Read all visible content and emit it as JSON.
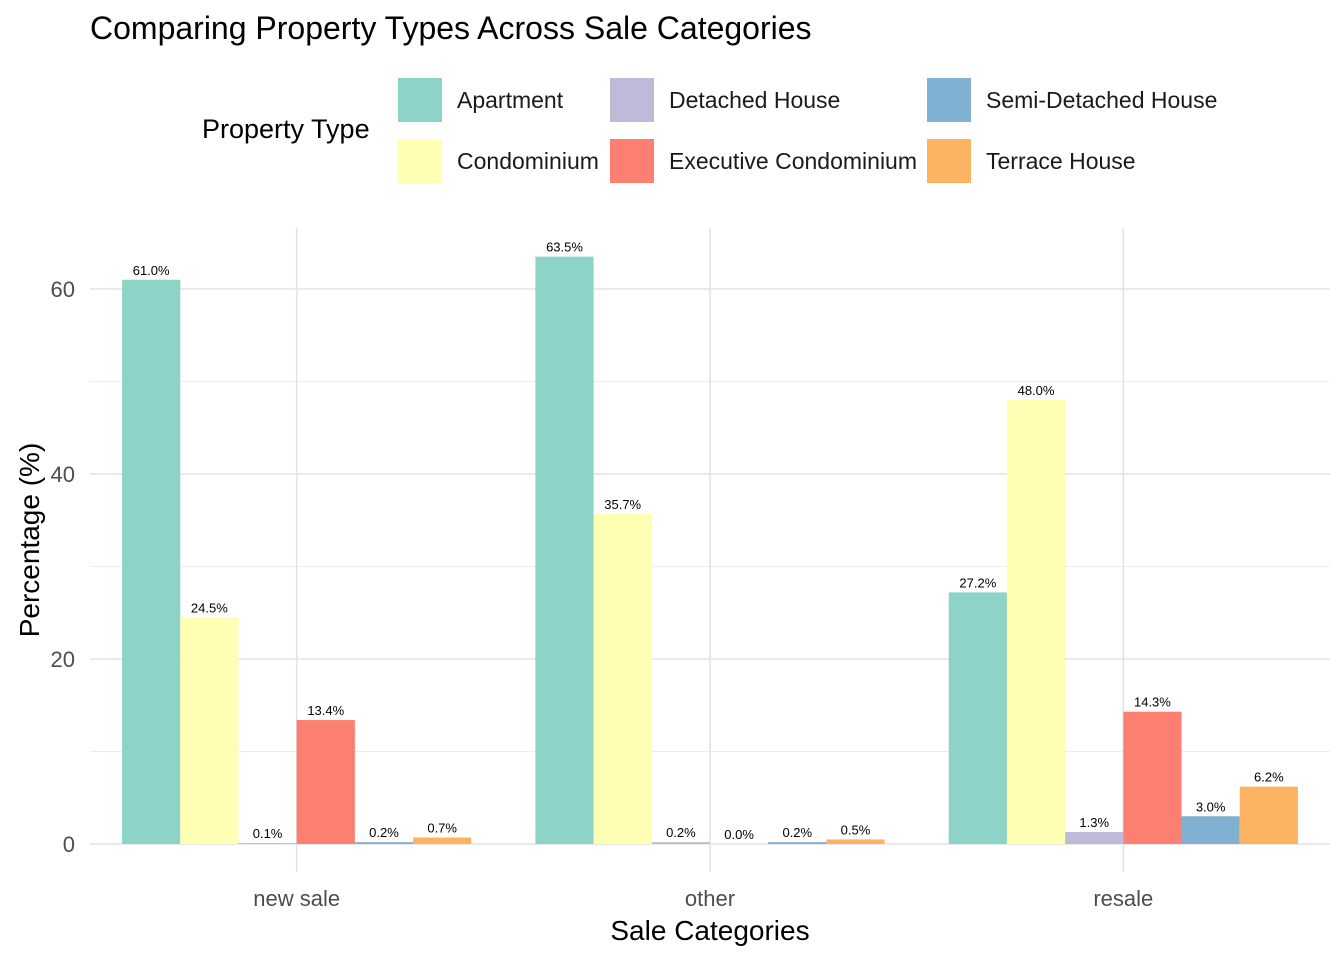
{
  "chart_data": {
    "type": "bar",
    "title": "Comparing Property Types Across Sale Categories",
    "xlabel": "Sale Categories",
    "ylabel": "Percentage (%)",
    "legend_title": "Property Type",
    "legend_position": "top",
    "grid": true,
    "ylim": [
      -3,
      66
    ],
    "yticks": [
      0,
      20,
      40,
      60
    ],
    "categories": [
      "new sale",
      "other",
      "resale"
    ],
    "series": [
      {
        "name": "Apartment",
        "color": "#8DD3C7",
        "values": [
          61.0,
          63.5,
          27.2
        ],
        "labels": [
          "61.0%",
          "63.5%",
          "27.2%"
        ]
      },
      {
        "name": "Condominium",
        "color": "#FFFFB3",
        "values": [
          24.5,
          35.7,
          48.0
        ],
        "labels": [
          "24.5%",
          "35.7%",
          "48.0%"
        ]
      },
      {
        "name": "Detached House",
        "color": "#BEBADA",
        "values": [
          0.1,
          0.2,
          1.3
        ],
        "labels": [
          "0.1%",
          "0.2%",
          "1.3%"
        ]
      },
      {
        "name": "Executive Condominium",
        "color": "#FB8072",
        "values": [
          13.4,
          0.0,
          14.3
        ],
        "labels": [
          "13.4%",
          "0.0%",
          "14.3%"
        ]
      },
      {
        "name": "Semi-Detached House",
        "color": "#80B1D3",
        "values": [
          0.2,
          0.2,
          3.0
        ],
        "labels": [
          "0.2%",
          "0.2%",
          "3.0%"
        ]
      },
      {
        "name": "Terrace House",
        "color": "#FDB462",
        "values": [
          0.7,
          0.5,
          6.2
        ],
        "labels": [
          "0.7%",
          "0.5%",
          "6.2%"
        ]
      }
    ]
  }
}
